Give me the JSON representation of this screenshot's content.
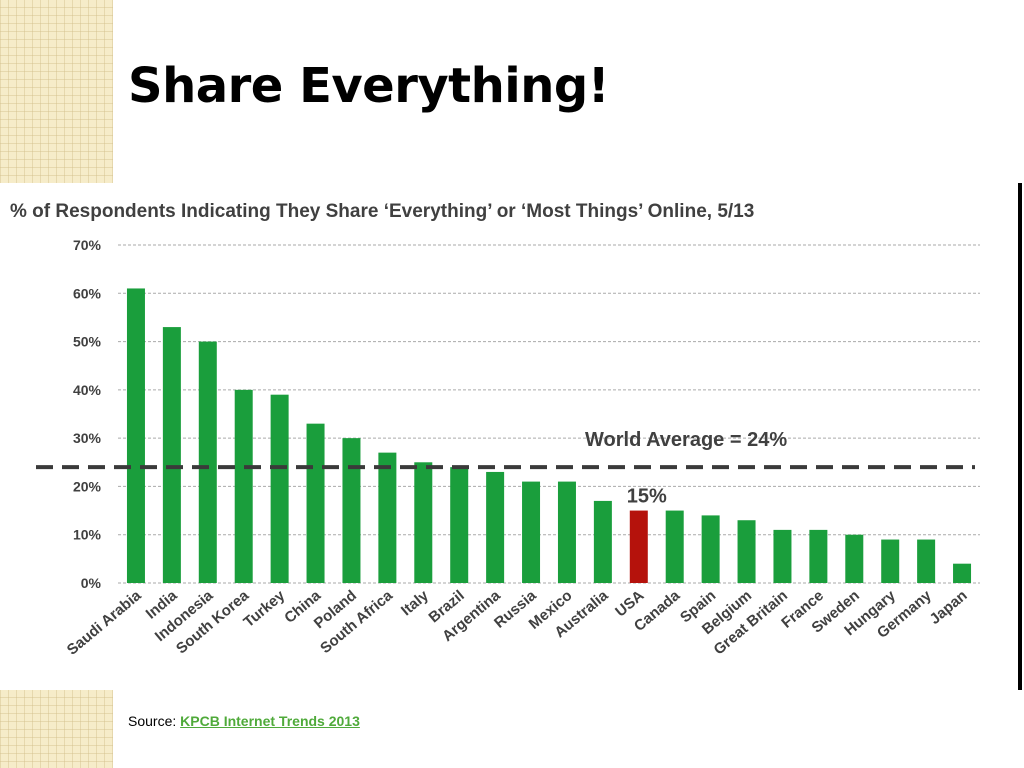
{
  "slide": {
    "title": "Share Everything!",
    "source_label": "Source:",
    "source_link": "KPCB Internet Trends 2013"
  },
  "colors": {
    "bar": "#1a9e3c",
    "highlight": "#b5120c",
    "gridline": "#aaaaaa",
    "average_line": "#3a3a3a"
  },
  "chart_data": {
    "type": "bar",
    "title": "% of Respondents Indicating They Share ‘Everything’ or ‘Most Things’ Online, 5/13",
    "categories": [
      "Saudi Arabia",
      "India",
      "Indonesia",
      "South Korea",
      "Turkey",
      "China",
      "Poland",
      "South Africa",
      "Italy",
      "Brazil",
      "Argentina",
      "Russia",
      "Mexico",
      "Australia",
      "USA",
      "Canada",
      "Spain",
      "Belgium",
      "Great Britain",
      "France",
      "Sweden",
      "Hungary",
      "Germany",
      "Japan"
    ],
    "values": [
      61,
      53,
      50,
      40,
      39,
      33,
      30,
      27,
      25,
      24,
      23,
      21,
      21,
      17,
      15,
      15,
      14,
      13,
      11,
      11,
      10,
      9,
      9,
      4
    ],
    "highlight_category": "USA",
    "y_ticks": [
      "0%",
      "10%",
      "20%",
      "30%",
      "40%",
      "50%",
      "60%",
      "70%"
    ],
    "ylim": [
      0,
      70
    ],
    "grid": true,
    "reference_line": {
      "label": "World Average = 24%",
      "value": 24
    },
    "highlight_label": "15%"
  }
}
